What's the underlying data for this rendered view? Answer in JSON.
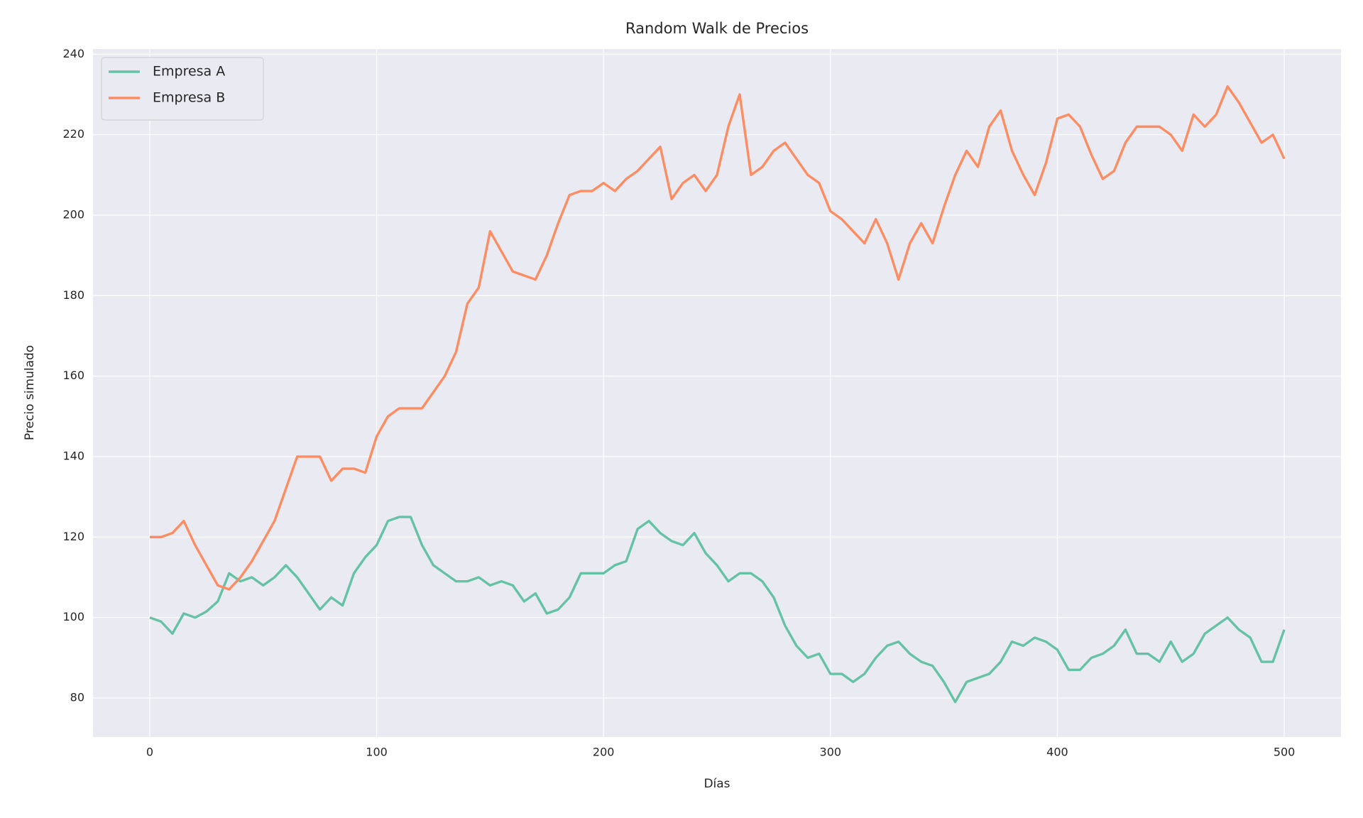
{
  "chart_data": {
    "type": "line",
    "title": "Random Walk de Precios",
    "x_label": "Días",
    "y_label": "Precio simulado",
    "x": [
      0,
      5,
      10,
      15,
      20,
      25,
      30,
      35,
      40,
      45,
      50,
      55,
      60,
      65,
      70,
      75,
      80,
      85,
      90,
      95,
      100,
      105,
      110,
      115,
      120,
      125,
      130,
      135,
      140,
      145,
      150,
      155,
      160,
      165,
      170,
      175,
      180,
      185,
      190,
      195,
      200,
      205,
      210,
      215,
      220,
      225,
      230,
      235,
      240,
      245,
      250,
      255,
      260,
      265,
      270,
      275,
      280,
      285,
      290,
      295,
      300,
      305,
      310,
      315,
      320,
      325,
      330,
      335,
      340,
      345,
      350,
      355,
      360,
      365,
      370,
      375,
      380,
      385,
      390,
      395,
      400,
      405,
      410,
      415,
      420,
      425,
      430,
      435,
      440,
      445,
      450,
      455,
      460,
      465,
      470,
      475,
      480,
      485,
      490,
      495,
      500
    ],
    "series": [
      {
        "name": "Empresa A",
        "color": "#66c2a5",
        "values": [
          100,
          99,
          96,
          101,
          100,
          101.5,
          104,
          111,
          109,
          110,
          108,
          110,
          113,
          110,
          106,
          102,
          105,
          103,
          111,
          115,
          118,
          124,
          125,
          125,
          118,
          113,
          111,
          109,
          109,
          110,
          108,
          109,
          108,
          104,
          106,
          101,
          102,
          105,
          111,
          111,
          111,
          113,
          114,
          122,
          124,
          121,
          119,
          118,
          121,
          116,
          113,
          109,
          111,
          111,
          109,
          105,
          98,
          93,
          90,
          91,
          86,
          86,
          84,
          86,
          90,
          93,
          94,
          91,
          89,
          88,
          84,
          79,
          84,
          85,
          86,
          89,
          94,
          93,
          95,
          94,
          92,
          87,
          87,
          90,
          91,
          93,
          97,
          91,
          91,
          89,
          94,
          89,
          91,
          96,
          98,
          100,
          97,
          95,
          89,
          89,
          97
        ]
      },
      {
        "name": "Empresa B",
        "color": "#fc8d62",
        "values": [
          120,
          120,
          121,
          124,
          118,
          113,
          108,
          107,
          110,
          114,
          119,
          124,
          132,
          140,
          140,
          140,
          134,
          137,
          137,
          136,
          145,
          150,
          152,
          152,
          152,
          156,
          160,
          166,
          178,
          182,
          196,
          191,
          186,
          185,
          184,
          190,
          198,
          205,
          206,
          206,
          208,
          206,
          209,
          211,
          214,
          217,
          204,
          208,
          210,
          206,
          210,
          222,
          230,
          210,
          212,
          216,
          218,
          214,
          210,
          208,
          201,
          199,
          196,
          193,
          199,
          193,
          184,
          193,
          198,
          193,
          202,
          210,
          216,
          212,
          222,
          226,
          216,
          210,
          205,
          213,
          224,
          225,
          222,
          215,
          209,
          211,
          218,
          222,
          222,
          222,
          220,
          216,
          225,
          222,
          225,
          232,
          228,
          223,
          218,
          220,
          214
        ]
      }
    ],
    "xlim": [
      -25,
      525
    ],
    "ylim": [
      70.3,
      241.3
    ],
    "xticks": [
      0,
      100,
      200,
      300,
      400,
      500
    ],
    "yticks": [
      80,
      100,
      120,
      140,
      160,
      180,
      200,
      220,
      240
    ],
    "grid": true,
    "legend": "upper-left"
  }
}
